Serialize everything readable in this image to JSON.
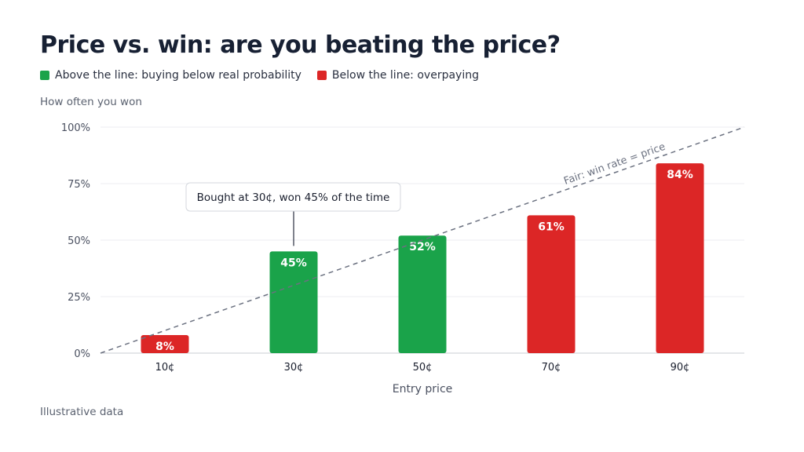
{
  "title": "Price vs. win: are you beating the price?",
  "legend": [
    {
      "label": "Above the line: buying below real probability",
      "color": "#1aa34a"
    },
    {
      "label": "Below the line: overpaying",
      "color": "#dc2626"
    }
  ],
  "ylabel": "How often you won",
  "footnote": "Illustrative data",
  "chart_data": {
    "type": "bar",
    "categories": [
      "10¢",
      "30¢",
      "50¢",
      "70¢",
      "90¢"
    ],
    "x": [
      10,
      30,
      50,
      70,
      90
    ],
    "values": [
      8,
      45,
      52,
      61,
      84
    ],
    "value_labels": [
      "8%",
      "45%",
      "52%",
      "61%",
      "84%"
    ],
    "bar_status": [
      "below",
      "above",
      "above",
      "below",
      "below"
    ],
    "colors": {
      "above": "#1aa34a",
      "below": "#dc2626"
    },
    "xlabel": "Entry price",
    "ylabel": "How often you won",
    "ylim": [
      0,
      100
    ],
    "yticks": [
      0,
      25,
      50,
      75,
      100
    ],
    "ytick_labels": [
      "0%",
      "25%",
      "50%",
      "75%",
      "100%"
    ],
    "grid": true,
    "reference_line": {
      "label": "Fair: win rate = price",
      "from": [
        0,
        0
      ],
      "to": [
        100,
        100
      ],
      "style": "dashed"
    },
    "annotation": {
      "text": "Bought at 30¢, won 45% of the time",
      "category": "30¢"
    }
  }
}
